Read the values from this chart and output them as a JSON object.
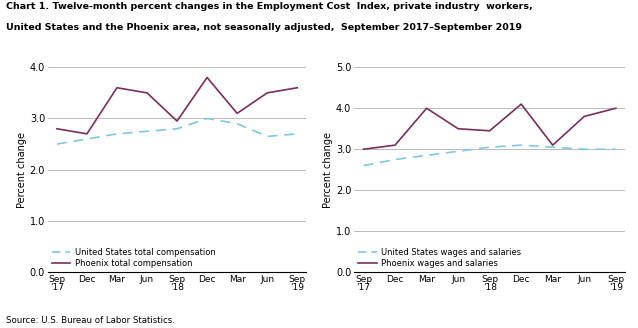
{
  "title_line1": "Chart 1. Twelve-month percent changes in the Employment Cost  Index, private industry  workers,",
  "title_line2": "United States and the Phoenix area, not seasonally adjusted,  September 2017–September 2019",
  "source": "Source: U.S. Bureau of Labor Statistics.",
  "x_tick_labels": [
    "Sep\n'17",
    "Dec",
    "Mar",
    "Jun",
    "Sep\n'18",
    "Dec",
    "Mar",
    "Jun",
    "Sep\n'19"
  ],
  "left_chart": {
    "ylabel": "Percent change",
    "ylim": [
      0.0,
      4.0
    ],
    "yticks": [
      0.0,
      1.0,
      2.0,
      3.0,
      4.0
    ],
    "us_data": [
      2.5,
      2.6,
      2.7,
      2.75,
      2.8,
      3.0,
      2.9,
      2.65,
      2.7
    ],
    "phoenix_data": [
      2.8,
      2.7,
      3.6,
      3.5,
      2.95,
      3.8,
      3.1,
      3.5,
      3.6
    ],
    "legend_us": "United States total compensation",
    "legend_phoenix": "Phoenix total compensation"
  },
  "right_chart": {
    "ylabel": "Percent change",
    "ylim": [
      0.0,
      5.0
    ],
    "yticks": [
      0.0,
      1.0,
      2.0,
      3.0,
      4.0,
      5.0
    ],
    "us_data": [
      2.6,
      2.75,
      2.85,
      2.95,
      3.05,
      3.1,
      3.05,
      3.0,
      3.0
    ],
    "phoenix_data": [
      3.0,
      3.1,
      4.0,
      3.5,
      3.45,
      4.1,
      3.1,
      3.8,
      4.0
    ],
    "legend_us": "United States wages and salaries",
    "legend_phoenix": "Phoenix wages and salaries"
  },
  "us_color": "#7ec8e3",
  "phoenix_color": "#7b2d5e",
  "grid_color": "#b0b0b0",
  "bg_color": "#ffffff"
}
